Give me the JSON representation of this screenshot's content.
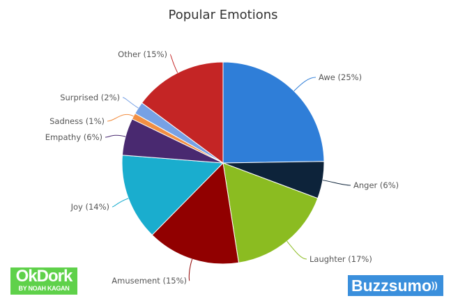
{
  "chart_data": {
    "type": "pie",
    "title": "Popular Emotions",
    "slices": [
      {
        "label": "Awe (25%)",
        "name": "Awe",
        "value": 25,
        "color": "#2f7ed8"
      },
      {
        "label": "Anger (6%)",
        "name": "Anger",
        "value": 6,
        "color": "#0d233a"
      },
      {
        "label": "Laughter (17%)",
        "name": "Laughter",
        "value": 17,
        "color": "#8bbc21"
      },
      {
        "label": "Amusement (15%)",
        "name": "Amusement",
        "value": 15,
        "color": "#910000"
      },
      {
        "label": "Joy (14%)",
        "name": "Joy",
        "value": 14,
        "color": "#1aadce"
      },
      {
        "label": "Empathy (6%)",
        "name": "Empathy",
        "value": 6,
        "color": "#492970"
      },
      {
        "label": "Sadness (1%)",
        "name": "Sadness",
        "value": 1,
        "color": "#f28f43"
      },
      {
        "label": "Surprised (2%)",
        "name": "Surprised",
        "value": 2,
        "color": "#77a1e5"
      },
      {
        "label": "Other (15%)",
        "name": "Other",
        "value": 15,
        "color": "#c42525"
      }
    ],
    "legend": "none"
  },
  "logos": {
    "okdork": {
      "main": "OkDork",
      "sub": "BY NOAH KAGAN"
    },
    "buzzsumo": {
      "main": "Buzzsumo"
    }
  }
}
